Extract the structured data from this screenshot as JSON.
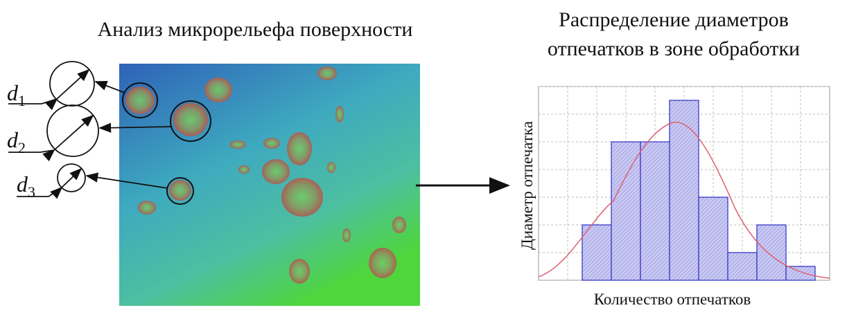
{
  "left_panel": {
    "title": "Анализ микрорельефа поверхности",
    "labels": [
      {
        "symbol": "d",
        "subscript": "1"
      },
      {
        "symbol": "d",
        "subscript": "2"
      },
      {
        "symbol": "d",
        "subscript": "3"
      }
    ]
  },
  "right_panel": {
    "title_lines": [
      "Распределение диаметров",
      "отпечатков в зоне обработки"
    ],
    "y_label": "Диаметр отпечатка",
    "x_label": "Количество отпечатков",
    "histogram": {
      "type": "bar",
      "values": [
        2,
        5,
        5,
        6.5,
        3,
        1,
        2,
        0.5
      ],
      "ylim": [
        0,
        7
      ],
      "yticks": [
        1,
        2,
        3,
        4,
        5,
        6,
        7
      ],
      "color": "#3a3ac8"
    }
  }
}
